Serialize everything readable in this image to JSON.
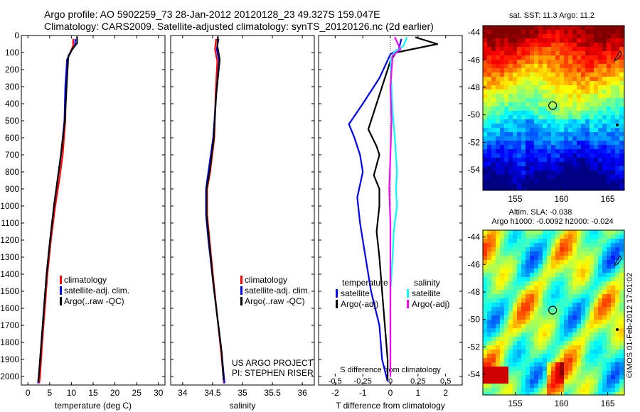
{
  "header": {
    "line1": "Argo profile: AO 5902259_73 28-Jan-2012 20120128_23 49.327S 159.047E",
    "line2": "Climatology: CARS2009. Satellite-adjusted climatology: synTS_20120126.nc (2d earlier)"
  },
  "side": {
    "sst_title": "sat. SST: 11.3 Argo: 11.2",
    "sla_title1": "Altim. SLA: -0.038",
    "sla_title2": "Argo h1000: -0.0092 h2000: -0.024",
    "credit": "©IMOS 01-Feb-2012 17:01:02"
  },
  "colors": {
    "climatology": "#ff0000",
    "satellite": "#0000ff",
    "argo": "#000000",
    "salinity_satellite": "#00ffff",
    "salinity_argo": "#ff00ff"
  },
  "chart_data": [
    {
      "type": "line",
      "panel": "temperature",
      "xlabel": "temperature (deg C)",
      "xlim": [
        -1.5,
        31.5
      ],
      "ylim": [
        2050,
        0
      ],
      "x_ticks": [
        0,
        5,
        10,
        15,
        20,
        25,
        30
      ],
      "y_ticks": [
        0,
        100,
        200,
        300,
        400,
        500,
        600,
        700,
        800,
        900,
        1000,
        1100,
        1200,
        1300,
        1400,
        1500,
        1600,
        1700,
        1800,
        1900,
        2000
      ],
      "legend": [
        "climatology",
        "satellite-adj. clim.",
        "Argo(..raw -QC)"
      ],
      "series": [
        {
          "name": "climatology",
          "color_key": "climatology",
          "points": [
            [
              10.4,
              20
            ],
            [
              10.4,
              60
            ],
            [
              9.9,
              90
            ],
            [
              9.1,
              140
            ],
            [
              8.8,
              300
            ],
            [
              8.6,
              500
            ],
            [
              8.0,
              700
            ],
            [
              7.2,
              850
            ],
            [
              6.3,
              1000
            ],
            [
              5.3,
              1200
            ],
            [
              4.5,
              1400
            ],
            [
              3.9,
              1600
            ],
            [
              3.3,
              1800
            ],
            [
              2.8,
              2000
            ],
            [
              2.6,
              2040
            ]
          ]
        },
        {
          "name": "satellite-adj. clim.",
          "color_key": "satellite",
          "points": [
            [
              10.9,
              20
            ],
            [
              10.8,
              60
            ],
            [
              10.0,
              90
            ],
            [
              9.0,
              140
            ],
            [
              8.6,
              300
            ],
            [
              8.4,
              500
            ],
            [
              7.6,
              700
            ],
            [
              6.8,
              850
            ],
            [
              6.0,
              1000
            ],
            [
              5.1,
              1200
            ],
            [
              4.3,
              1400
            ],
            [
              3.7,
              1600
            ],
            [
              3.1,
              1800
            ],
            [
              2.5,
              2000
            ],
            [
              2.3,
              2040
            ]
          ]
        },
        {
          "name": "Argo(..raw -QC)",
          "color_key": "argo",
          "points": [
            [
              11.3,
              5
            ],
            [
              11.3,
              45
            ],
            [
              10.2,
              80
            ],
            [
              9.3,
              120
            ],
            [
              8.9,
              300
            ],
            [
              8.5,
              500
            ],
            [
              7.6,
              700
            ],
            [
              6.8,
              850
            ],
            [
              6.0,
              1000
            ],
            [
              5.1,
              1200
            ],
            [
              4.3,
              1400
            ],
            [
              3.7,
              1600
            ],
            [
              3.1,
              1800
            ],
            [
              2.5,
              2000
            ],
            [
              2.4,
              2030
            ]
          ]
        }
      ]
    },
    {
      "type": "line",
      "panel": "salinity",
      "xlabel": "salinity",
      "xlim": [
        33.8,
        36.2
      ],
      "ylim": [
        2050,
        0
      ],
      "x_ticks": [
        34,
        34.5,
        35,
        35.5,
        36
      ],
      "x_tick_labels": [
        "34",
        "34.5",
        "35",
        "35.5",
        "36"
      ],
      "legend": [
        "climatology",
        "satellite-adj. clim.",
        "Argo(..raw -QC)"
      ],
      "annotation": [
        "US ARGO PROJECT",
        "PI: STEPHEN RISER"
      ],
      "series": [
        {
          "name": "climatology",
          "color_key": "climatology",
          "points": [
            [
              34.56,
              20
            ],
            [
              34.54,
              80
            ],
            [
              34.58,
              150
            ],
            [
              34.55,
              350
            ],
            [
              34.53,
              600
            ],
            [
              34.46,
              800
            ],
            [
              34.41,
              900
            ],
            [
              34.41,
              1050
            ],
            [
              34.45,
              1200
            ],
            [
              34.52,
              1450
            ],
            [
              34.58,
              1650
            ],
            [
              34.64,
              1850
            ],
            [
              34.68,
              2000
            ],
            [
              34.69,
              2040
            ]
          ]
        },
        {
          "name": "satellite-adj. clim.",
          "color_key": "satellite",
          "points": [
            [
              34.6,
              20
            ],
            [
              34.57,
              80
            ],
            [
              34.61,
              150
            ],
            [
              34.56,
              350
            ],
            [
              34.51,
              600
            ],
            [
              34.43,
              800
            ],
            [
              34.39,
              900
            ],
            [
              34.39,
              1050
            ],
            [
              34.43,
              1200
            ],
            [
              34.51,
              1450
            ],
            [
              34.58,
              1650
            ],
            [
              34.65,
              1850
            ],
            [
              34.69,
              2000
            ],
            [
              34.7,
              2040
            ]
          ]
        },
        {
          "name": "Argo(..raw -QC)",
          "color_key": "argo",
          "points": [
            [
              34.59,
              5
            ],
            [
              34.58,
              60
            ],
            [
              34.62,
              140
            ],
            [
              34.56,
              350
            ],
            [
              34.52,
              600
            ],
            [
              34.45,
              800
            ],
            [
              34.4,
              900
            ],
            [
              34.4,
              1050
            ],
            [
              34.44,
              1200
            ],
            [
              34.51,
              1450
            ],
            [
              34.58,
              1650
            ],
            [
              34.65,
              1850
            ],
            [
              34.68,
              2000
            ],
            [
              34.68,
              2020
            ]
          ]
        }
      ]
    },
    {
      "type": "line",
      "panel": "difference",
      "xlabel": "T difference from climatology",
      "x2label": "S difference from climatology",
      "xlim": [
        -2.6,
        2.6
      ],
      "ylim": [
        2050,
        0
      ],
      "x_ticks": [
        -2,
        -1,
        0,
        1,
        2
      ],
      "x2_ticks": [
        -0.5,
        -0.25,
        0,
        0.25,
        0.5
      ],
      "x2_tick_labels": [
        "-0.5",
        "-0.25",
        "0",
        "0.25",
        "0.5"
      ],
      "x2_factor": 4,
      "legend": {
        "temperature_title": "temperature",
        "salinity_title": "salinity",
        "items": [
          "satellite",
          "Argo(-adj)",
          "satellite",
          "Argo(-adj)"
        ]
      },
      "series": [
        {
          "name": "satellite",
          "group": "temperature",
          "color_key": "satellite",
          "points": [
            [
              0.4,
              20
            ],
            [
              0.3,
              80
            ],
            [
              0.0,
              110
            ],
            [
              -0.4,
              250
            ],
            [
              -1.0,
              400
            ],
            [
              -1.5,
              520
            ],
            [
              -1.3,
              600
            ],
            [
              -1.1,
              700
            ],
            [
              -1.0,
              800
            ],
            [
              -1.2,
              950
            ],
            [
              -1.1,
              1100
            ],
            [
              -0.9,
              1300
            ],
            [
              -0.7,
              1500
            ],
            [
              -0.4,
              1700
            ],
            [
              -0.3,
              1900
            ],
            [
              -0.1,
              2030
            ]
          ]
        },
        {
          "name": "Argo(-adj)",
          "group": "temperature",
          "color_key": "argo",
          "points": [
            [
              0.9,
              10
            ],
            [
              1.7,
              50
            ],
            [
              0.2,
              100
            ],
            [
              0.0,
              150
            ],
            [
              -0.3,
              300
            ],
            [
              -0.6,
              450
            ],
            [
              -0.8,
              550
            ],
            [
              -0.5,
              650
            ],
            [
              -0.4,
              700
            ],
            [
              -0.6,
              820
            ],
            [
              -0.4,
              900
            ],
            [
              -0.4,
              1000
            ],
            [
              -0.5,
              1150
            ],
            [
              -0.4,
              1300
            ],
            [
              -0.3,
              1500
            ],
            [
              -0.2,
              1700
            ],
            [
              -0.1,
              1900
            ],
            [
              -0.1,
              2020
            ]
          ]
        },
        {
          "name": "satellite",
          "group": "salinity",
          "color_key": "salinity_satellite",
          "points": [
            [
              0.15,
              10
            ],
            [
              0.12,
              60
            ],
            [
              0.03,
              100
            ],
            [
              0.0,
              150
            ],
            [
              0.01,
              300
            ],
            [
              0.02,
              450
            ],
            [
              0.04,
              600
            ],
            [
              0.05,
              700
            ],
            [
              0.06,
              800
            ],
            [
              0.05,
              900
            ],
            [
              0.06,
              1000
            ],
            [
              0.03,
              1150
            ],
            [
              0.02,
              1300
            ],
            [
              0.0,
              1500
            ],
            [
              0.0,
              1700
            ],
            [
              0.0,
              2000
            ]
          ]
        },
        {
          "name": "Argo(-adj)",
          "group": "salinity",
          "color_key": "salinity_argo",
          "points": [
            [
              0.04,
              10
            ],
            [
              0.09,
              80
            ],
            [
              0.02,
              120
            ],
            [
              0.0,
              300
            ],
            [
              0.01,
              500
            ],
            [
              0.0,
              700
            ],
            [
              -0.01,
              900
            ],
            [
              0.0,
              1100
            ],
            [
              0.0,
              1300
            ],
            [
              0.0,
              1500
            ],
            [
              0.0,
              1700
            ],
            [
              0.0,
              2000
            ]
          ]
        }
      ]
    },
    {
      "type": "heatmap",
      "panel": "sst_map",
      "title": "sat. SST: 11.3 Argo: 11.2",
      "xlim": [
        151.5,
        166.8
      ],
      "ylim": [
        -55.5,
        -43.5
      ],
      "x_ticks": [
        155,
        160,
        165
      ],
      "y_ticks": [
        -44,
        -46,
        -48,
        -50,
        -52,
        -54
      ],
      "profile_marker": [
        159.047,
        -49.327
      ]
    },
    {
      "type": "heatmap",
      "panel": "sla_map",
      "title": "Altim. SLA: -0.038",
      "subtitle": "Argo h1000: -0.0092 h2000: -0.024",
      "xlim": [
        151.5,
        166.8
      ],
      "ylim": [
        -55.5,
        -43.5
      ],
      "x_ticks": [
        155,
        160,
        165
      ],
      "y_ticks": [
        -44,
        -46,
        -48,
        -50,
        -52,
        -54
      ],
      "profile_marker": [
        159.047,
        -49.327
      ]
    }
  ]
}
